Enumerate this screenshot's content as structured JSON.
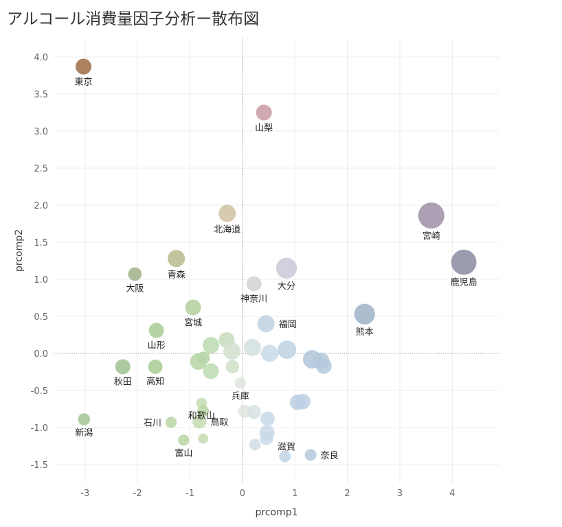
{
  "title": "アルコール消費量因子分析ー散布図",
  "chart_data": {
    "type": "scatter",
    "xlabel": "prcomp1",
    "ylabel": "prcomp2",
    "xlim": [
      -3.6,
      4.9
    ],
    "ylim": [
      -1.75,
      4.25
    ],
    "xticks": [
      -3,
      -2,
      -1,
      0,
      1,
      2,
      3,
      4
    ],
    "xtick_labels": [
      "-3",
      "-2",
      "-1",
      "0",
      "1",
      "2",
      "3",
      "4"
    ],
    "yticks": [
      -1.5,
      -1.0,
      -0.5,
      0.0,
      0.5,
      1.0,
      1.5,
      2.0,
      2.5,
      3.0,
      3.5,
      4.0
    ],
    "ytick_labels": [
      "-1.5",
      "-1.0",
      "-0.5",
      "0.0",
      "0.5",
      "1.0",
      "1.5",
      "2.0",
      "2.5",
      "3.0",
      "3.5",
      "4.0"
    ],
    "grid": true,
    "zero_lines": true,
    "points": [
      {
        "label": "東京",
        "x": -3.03,
        "y": 3.87,
        "size": 1.1,
        "color": "#9c6b43",
        "label_pos": "below"
      },
      {
        "label": "山梨",
        "x": 0.41,
        "y": 3.25,
        "size": 1.1,
        "color": "#c99aa5",
        "label_pos": "below"
      },
      {
        "label": "北海道",
        "x": -0.29,
        "y": 1.89,
        "size": 1.3,
        "color": "#cfc1a3",
        "label_pos": "below"
      },
      {
        "label": "宮崎",
        "x": 3.6,
        "y": 1.86,
        "size": 3.0,
        "color": "#9e8fa7",
        "label_pos": "below"
      },
      {
        "label": "鹿児島",
        "x": 4.22,
        "y": 1.23,
        "size": 2.8,
        "color": "#8b8ba3",
        "label_pos": "below"
      },
      {
        "label": "青森",
        "x": -1.26,
        "y": 1.28,
        "size": 1.3,
        "color": "#b8b98d",
        "label_pos": "below"
      },
      {
        "label": "大阪",
        "x": -2.05,
        "y": 1.07,
        "size": 0.8,
        "color": "#a0b088",
        "label_pos": "below"
      },
      {
        "label": "大分",
        "x": 0.84,
        "y": 1.15,
        "size": 1.9,
        "color": "#c8c8d8",
        "label_pos": "below"
      },
      {
        "label": "神奈川",
        "x": 0.22,
        "y": 0.94,
        "size": 1.0,
        "color": "#d2d2d6",
        "label_pos": "below"
      },
      {
        "label": "宮城",
        "x": -0.94,
        "y": 0.62,
        "size": 1.1,
        "color": "#b4cf9c",
        "label_pos": "below"
      },
      {
        "label": "熊本",
        "x": 2.33,
        "y": 0.53,
        "size": 1.9,
        "color": "#9fb1c8",
        "label_pos": "below"
      },
      {
        "label": "福岡",
        "x": 0.45,
        "y": 0.4,
        "size": 1.3,
        "color": "#c1d1e1",
        "label_pos": "right"
      },
      {
        "label": "山形",
        "x": -1.64,
        "y": 0.31,
        "size": 1.0,
        "color": "#a9cb93",
        "label_pos": "below"
      },
      {
        "label": "秋田",
        "x": -2.28,
        "y": -0.18,
        "size": 1.0,
        "color": "#9ebf92",
        "label_pos": "below"
      },
      {
        "label": "高知",
        "x": -1.66,
        "y": -0.18,
        "size": 0.9,
        "color": "#a9cb93",
        "label_pos": "below"
      },
      {
        "label": "兵庫",
        "x": -0.04,
        "y": -0.4,
        "size": 0.55,
        "color": "#dde6dc",
        "label_pos": "below"
      },
      {
        "label": "和歌山",
        "x": -0.78,
        "y": -0.67,
        "size": 0.5,
        "color": "#c3dcb0",
        "label_pos": "below"
      },
      {
        "label": "新潟",
        "x": -3.02,
        "y": -0.89,
        "size": 0.65,
        "color": "#a4c596",
        "label_pos": "below"
      },
      {
        "label": "石川",
        "x": -1.36,
        "y": -0.93,
        "size": 0.55,
        "color": "#b9d6a5",
        "label_pos": "left"
      },
      {
        "label": "鳥取",
        "x": -0.82,
        "y": -0.92,
        "size": 0.85,
        "color": "#c3dcb0",
        "label_pos": "right"
      },
      {
        "label": "富山",
        "x": -1.12,
        "y": -1.17,
        "size": 0.55,
        "color": "#b9d6a5",
        "label_pos": "below"
      },
      {
        "label": "滋賀",
        "x": 0.47,
        "y": -1.07,
        "size": 1.0,
        "color": "#c8d9e8",
        "label_pos": "below-right"
      },
      {
        "label": "奈良",
        "x": 1.3,
        "y": -1.37,
        "size": 0.6,
        "color": "#b5c8dc",
        "label_pos": "right"
      },
      {
        "label": "",
        "x": -0.75,
        "y": -0.78,
        "size": 0.6,
        "color": "#b9d6a5"
      },
      {
        "label": "",
        "x": -0.6,
        "y": 0.11,
        "size": 1.2,
        "color": "#bcdbb0"
      },
      {
        "label": "",
        "x": -0.3,
        "y": 0.18,
        "size": 1.1,
        "color": "#c7dcbd"
      },
      {
        "label": "",
        "x": -0.2,
        "y": 0.03,
        "size": 1.3,
        "color": "#d2e1cc"
      },
      {
        "label": "",
        "x": -0.84,
        "y": -0.11,
        "size": 1.2,
        "color": "#b5d5a5"
      },
      {
        "label": "",
        "x": -0.74,
        "y": -0.06,
        "size": 0.7,
        "color": "#b5d5a5"
      },
      {
        "label": "",
        "x": -0.6,
        "y": -0.24,
        "size": 1.1,
        "color": "#bcdbb0"
      },
      {
        "label": "",
        "x": -0.19,
        "y": -0.18,
        "size": 0.8,
        "color": "#d0e0c8"
      },
      {
        "label": "",
        "x": 0.19,
        "y": 0.08,
        "size": 1.3,
        "color": "#d2e0e0"
      },
      {
        "label": "",
        "x": 0.52,
        "y": 0.0,
        "size": 1.3,
        "color": "#c9dae6"
      },
      {
        "label": "",
        "x": 0.85,
        "y": 0.05,
        "size": 1.5,
        "color": "#bdd2e3"
      },
      {
        "label": "",
        "x": 1.33,
        "y": -0.08,
        "size": 1.5,
        "color": "#b0c6da"
      },
      {
        "label": "",
        "x": 1.5,
        "y": -0.1,
        "size": 1.2,
        "color": "#b5c9dc"
      },
      {
        "label": "",
        "x": 1.55,
        "y": -0.17,
        "size": 1.1,
        "color": "#b5c9dc"
      },
      {
        "label": "",
        "x": 0.04,
        "y": -0.78,
        "size": 0.75,
        "color": "#dde5dc"
      },
      {
        "label": "",
        "x": 0.22,
        "y": -0.79,
        "size": 0.85,
        "color": "#d6e1e3"
      },
      {
        "label": "",
        "x": 0.48,
        "y": -0.88,
        "size": 0.9,
        "color": "#c8d9e8"
      },
      {
        "label": "",
        "x": 1.05,
        "y": -0.66,
        "size": 1.05,
        "color": "#bcd0e3"
      },
      {
        "label": "",
        "x": 1.15,
        "y": -0.65,
        "size": 1.05,
        "color": "#bcd0e3"
      },
      {
        "label": "",
        "x": 0.46,
        "y": -1.15,
        "size": 0.75,
        "color": "#c8d9e8"
      },
      {
        "label": "",
        "x": 0.24,
        "y": -1.23,
        "size": 0.6,
        "color": "#d0dde6"
      },
      {
        "label": "",
        "x": 0.81,
        "y": -1.39,
        "size": 0.6,
        "color": "#c2d3e4"
      },
      {
        "label": "",
        "x": -0.75,
        "y": -1.15,
        "size": 0.45,
        "color": "#c3dcb0"
      }
    ]
  }
}
